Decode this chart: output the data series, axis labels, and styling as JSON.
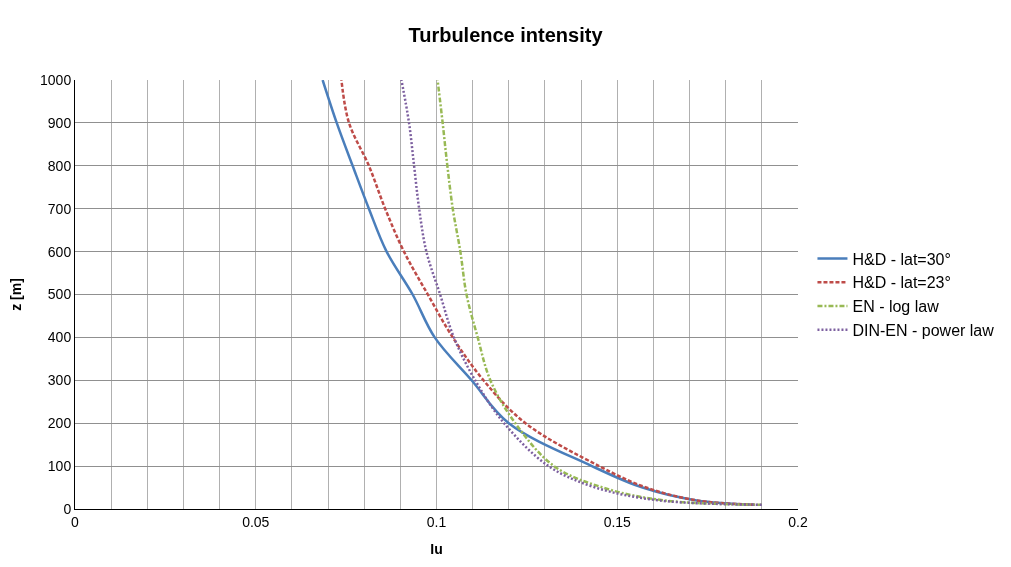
{
  "chart_data": {
    "type": "line",
    "title": "Turbulence intensity",
    "xlabel": "Iu",
    "ylabel": "z [m]",
    "xlim": [
      0,
      0.2
    ],
    "ylim": [
      0,
      1000
    ],
    "xticks": [
      0,
      {
        "value": 0.01,
        "label": null
      },
      {
        "value": 0.02,
        "label": null
      },
      {
        "value": 0.03,
        "label": null
      },
      {
        "value": 0.04,
        "label": null
      },
      0.05,
      {
        "value": 0.06,
        "label": null
      },
      {
        "value": 0.07,
        "label": null
      },
      {
        "value": 0.08,
        "label": null
      },
      {
        "value": 0.09,
        "label": null
      },
      0.1,
      {
        "value": 0.11,
        "label": null
      },
      {
        "value": 0.12,
        "label": null
      },
      {
        "value": 0.13,
        "label": null
      },
      {
        "value": 0.14,
        "label": null
      },
      0.15,
      {
        "value": 0.16,
        "label": null
      },
      {
        "value": 0.17,
        "label": null
      },
      {
        "value": 0.18,
        "label": null
      },
      {
        "value": 0.19,
        "label": null
      },
      0.2
    ],
    "yticks": [
      0,
      100,
      200,
      300,
      400,
      500,
      600,
      700,
      800,
      900,
      1000
    ],
    "grid": true,
    "legend": "right",
    "marker": "none",
    "series": [
      {
        "name": "H&D - lat=30°",
        "color": "#4a7ebb",
        "line_style": "solid",
        "x": [
          0.188,
          0.172,
          0.157,
          0.143,
          0.12,
          0.1097,
          0.0995,
          0.0934,
          0.0862,
          0.0813,
          0.0768,
          0.0724,
          0.0685
        ],
        "values": [
          10,
          20,
          50,
          100,
          200,
          300,
          400,
          500,
          600,
          700,
          800,
          900,
          1000
        ]
      },
      {
        "name": "H&D - lat=23°",
        "color": "#be4b48",
        "line_style": "dashed",
        "x": [
          0.188,
          0.172,
          0.158,
          0.145,
          0.1246,
          0.113,
          0.1045,
          0.0976,
          0.091,
          0.0858,
          0.0813,
          0.0758,
          0.0737
        ],
        "values": [
          10,
          20,
          50,
          100,
          200,
          300,
          400,
          500,
          600,
          700,
          800,
          900,
          1000
        ]
      },
      {
        "name": "EN - log law",
        "color": "#98b954",
        "line_style": "dashdot",
        "x": [
          0.19,
          0.163,
          0.146,
          0.1325,
          0.1218,
          0.1149,
          0.1114,
          0.1083,
          0.1066,
          0.1045,
          0.103,
          0.1017,
          0.1003
        ],
        "values": [
          10,
          20,
          50,
          100,
          200,
          300,
          400,
          500,
          600,
          700,
          800,
          900,
          1000
        ]
      },
      {
        "name": "DIN-EN - power law",
        "color": "#7d60a0",
        "line_style": "dotted",
        "x": [
          0.19,
          0.1616,
          0.144,
          0.131,
          0.1187,
          0.1107,
          0.1048,
          0.101,
          0.0972,
          0.0952,
          0.0938,
          0.0924,
          0.0903
        ],
        "values": [
          10,
          20,
          50,
          100,
          200,
          300,
          400,
          500,
          600,
          700,
          800,
          900,
          1000
        ]
      }
    ]
  }
}
